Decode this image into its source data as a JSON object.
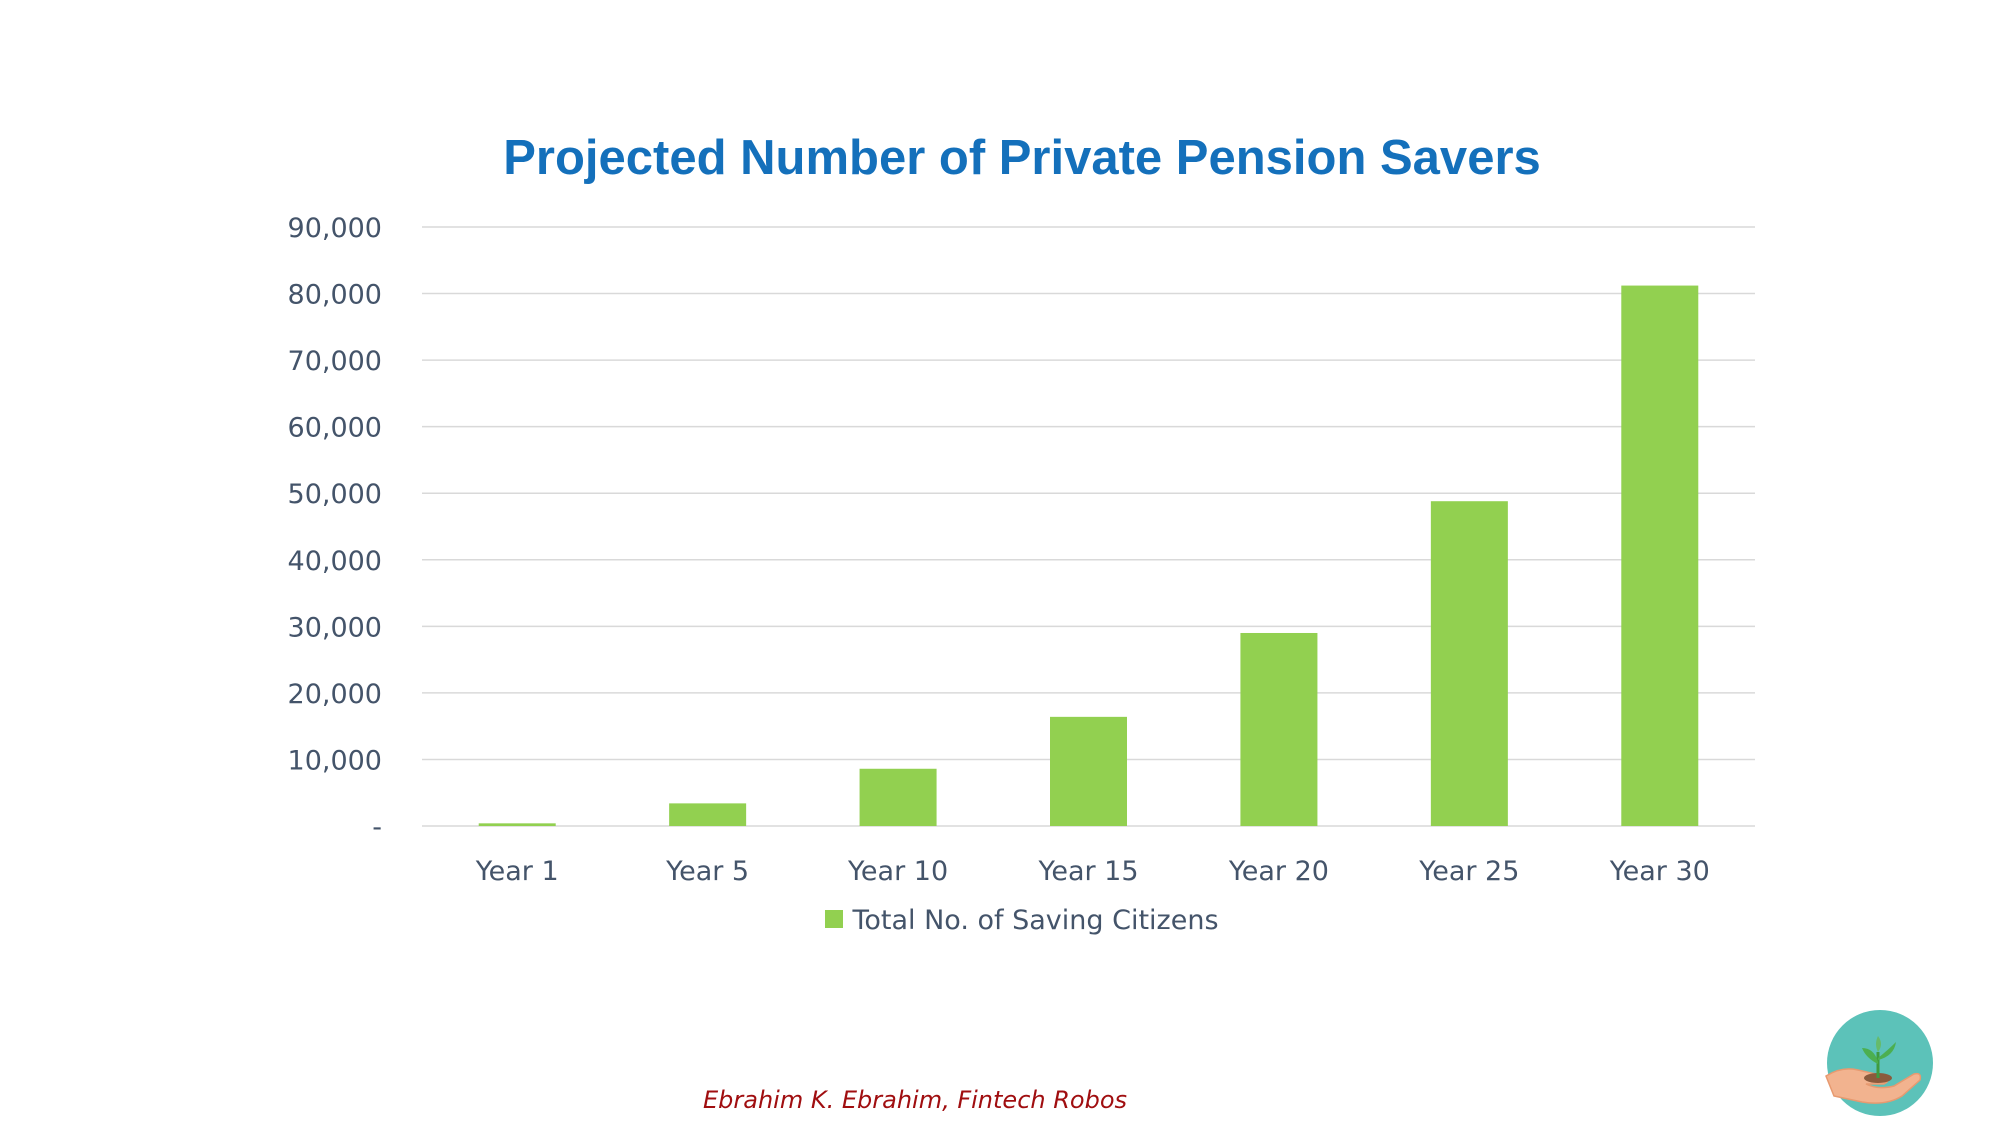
{
  "chart_data": {
    "type": "bar",
    "title": "Projected Number of Private Pension Savers",
    "categories": [
      "Year 1",
      "Year 5",
      "Year 10",
      "Year 15",
      "Year 20",
      "Year 25",
      "Year 30"
    ],
    "series": [
      {
        "name": "Total No. of Saving Citizens",
        "values": [
          400,
          3400,
          8600,
          16400,
          29000,
          48800,
          81200
        ]
      }
    ],
    "ylim": [
      0,
      90000
    ],
    "yticks": [
      0,
      10000,
      20000,
      30000,
      40000,
      50000,
      60000,
      70000,
      80000,
      90000
    ],
    "ytick_labels": [
      "-",
      "10,000",
      "20,000",
      "30,000",
      "40,000",
      "50,000",
      "60,000",
      "70,000",
      "80,000",
      "90,000"
    ],
    "xlabel": "",
    "ylabel": "",
    "grid": true,
    "legend": "bottom-center",
    "bar_color": "#92d050"
  },
  "credit": "Ebrahim K. Ebrahim, Fintech Robos",
  "colors": {
    "title": "#1470bb",
    "credit": "#a00e10",
    "logo_circle": "#5cc2b9",
    "gridline": "#d9d9d9"
  },
  "logo_icon": "plant-in-hand-icon"
}
